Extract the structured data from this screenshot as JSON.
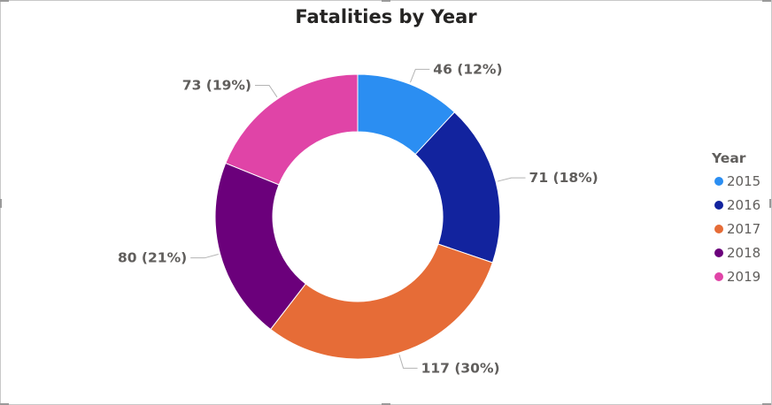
{
  "chart_data": {
    "type": "pie",
    "variant": "donut",
    "title": "Fatalities by Year",
    "legend": {
      "title": "Year",
      "placement": "right"
    },
    "categories": [
      "2015",
      "2016",
      "2017",
      "2018",
      "2019"
    ],
    "values": [
      46,
      71,
      117,
      80,
      73
    ],
    "data_labels": [
      "46 (12%)",
      "71 (18%)",
      "117 (30%)",
      "80 (21%)",
      "73 (19%)"
    ],
    "colors": [
      "#2b8ef2",
      "#12239e",
      "#e66c37",
      "#6b007b",
      "#e044a7"
    ]
  }
}
